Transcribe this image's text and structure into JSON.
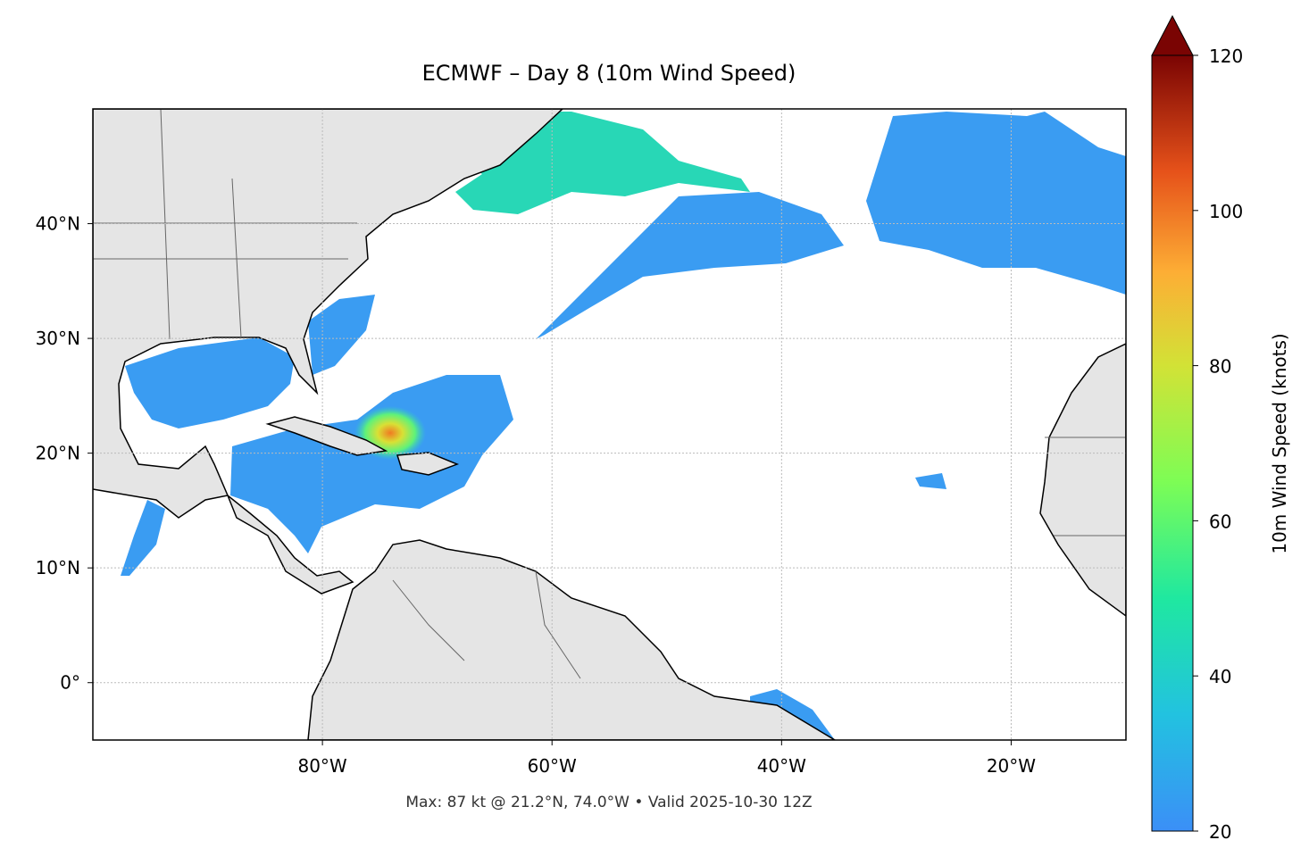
{
  "map": {
    "title": "ECMWF – Day 8 (10m Wind Speed)",
    "footer": "Max: 87 kt @ 21.2°N, 74.0°W • Valid 2025-10-30 12Z",
    "xlim": [
      -100,
      -10
    ],
    "ylim": [
      -5,
      50
    ],
    "xticks": [
      {
        "value": -80,
        "label": "80°W"
      },
      {
        "value": -60,
        "label": "60°W"
      },
      {
        "value": -40,
        "label": "40°W"
      },
      {
        "value": -20,
        "label": "20°W"
      }
    ],
    "yticks": [
      {
        "value": 0,
        "label": "0°"
      },
      {
        "value": 10,
        "label": "10°N"
      },
      {
        "value": 20,
        "label": "20°N"
      },
      {
        "value": 30,
        "label": "30°N"
      },
      {
        "value": 40,
        "label": "40°N"
      }
    ],
    "grid": true,
    "colorbar": {
      "label": "10m Wind Speed (knots)",
      "lim": [
        20,
        120
      ],
      "ticks": [
        20,
        40,
        60,
        80,
        100,
        120
      ]
    }
  }
}
